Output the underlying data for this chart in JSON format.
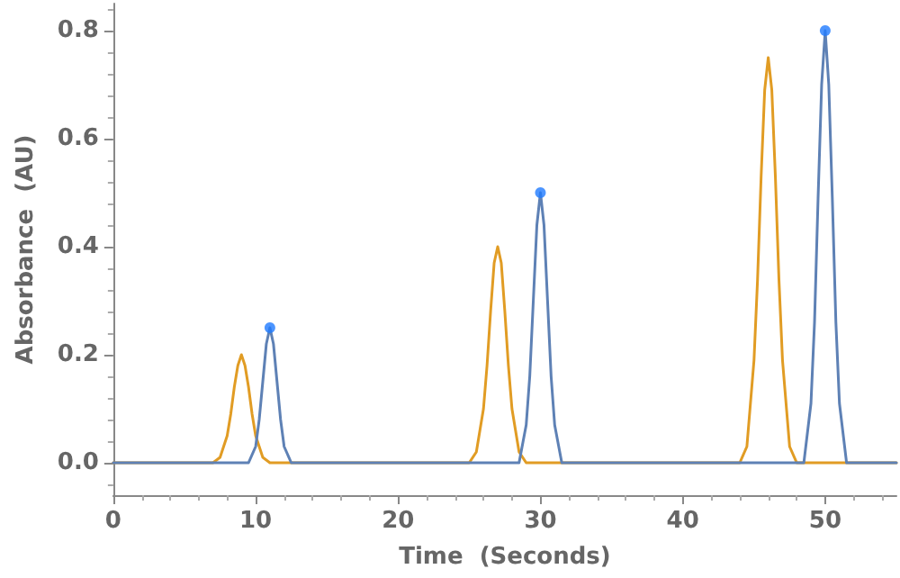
{
  "chart_data": {
    "type": "line",
    "xlabel": "Time  (Seconds)",
    "ylabel": "Absorbance  (AU)",
    "xlim": [
      0,
      55
    ],
    "ylim": [
      -0.06,
      0.85
    ],
    "xticks": [
      0,
      10,
      20,
      30,
      40,
      50
    ],
    "yticks": [
      {
        "value": 0,
        "label": "0.0"
      },
      0.2,
      0.4,
      0.6,
      0.8
    ],
    "grid": false,
    "marker": "none",
    "line_style": "solid",
    "series": [
      {
        "color": "#e19c24",
        "x": [
          0,
          7,
          7.5,
          8,
          8.25,
          8.5,
          8.75,
          9,
          9.25,
          9.5,
          9.75,
          10,
          10.5,
          11,
          25,
          25.5,
          26,
          26.25,
          26.5,
          26.75,
          27,
          27.25,
          27.5,
          27.75,
          28,
          28.5,
          29,
          44,
          44.5,
          45,
          45.25,
          45.5,
          45.75,
          46,
          46.25,
          46.5,
          46.75,
          47,
          47.5,
          48,
          55
        ],
        "values": [
          0,
          0,
          0.01,
          0.05,
          0.09,
          0.14,
          0.18,
          0.2,
          0.18,
          0.14,
          0.09,
          0.05,
          0.01,
          0,
          0,
          0.02,
          0.1,
          0.18,
          0.28,
          0.37,
          0.4,
          0.37,
          0.28,
          0.18,
          0.1,
          0.02,
          0,
          0,
          0.03,
          0.19,
          0.34,
          0.53,
          0.69,
          0.75,
          0.69,
          0.53,
          0.34,
          0.19,
          0.03,
          0,
          0
        ]
      },
      {
        "color": "#5e81b5",
        "x": [
          0,
          9.5,
          10,
          10.25,
          10.5,
          10.75,
          11,
          11.25,
          11.5,
          11.75,
          12,
          12.5,
          28.5,
          29,
          29.25,
          29.5,
          29.75,
          30,
          30.25,
          30.5,
          30.75,
          31,
          31.5,
          48.5,
          49,
          49.25,
          49.5,
          49.75,
          50,
          50.25,
          50.5,
          50.75,
          51,
          51.5,
          55
        ],
        "values": [
          0,
          0,
          0.03,
          0.08,
          0.15,
          0.22,
          0.25,
          0.22,
          0.15,
          0.08,
          0.03,
          0,
          0,
          0.07,
          0.16,
          0.3,
          0.44,
          0.5,
          0.44,
          0.3,
          0.16,
          0.07,
          0,
          0,
          0.11,
          0.26,
          0.49,
          0.7,
          0.8,
          0.7,
          0.49,
          0.26,
          0.11,
          0,
          0
        ]
      },
      {
        "type": "scatter",
        "marker": "circle",
        "color": "#1f7bff",
        "x": [
          11,
          30,
          50
        ],
        "values": [
          0.25,
          0.5,
          0.8
        ]
      }
    ]
  }
}
